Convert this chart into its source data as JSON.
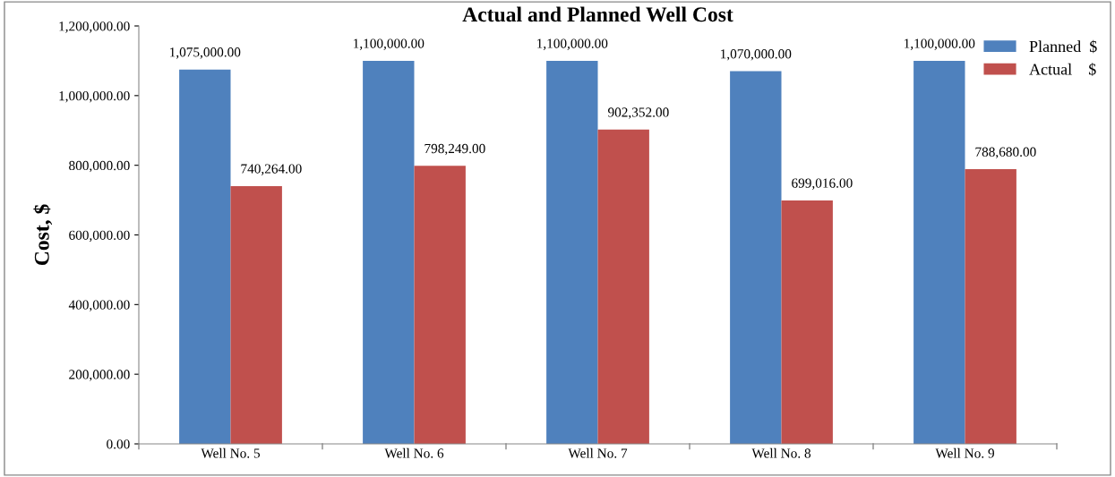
{
  "chart_data": {
    "type": "bar",
    "title": "Actual and Planned Well Cost",
    "ylabel": "Cost, $",
    "categories": [
      "Well No. 5",
      "Well No. 6",
      "Well No. 7",
      "Well No. 8",
      "Well No. 9"
    ],
    "series": [
      {
        "name": "Planned  $",
        "color": "#4f81bd",
        "values": [
          1075000,
          1100000,
          1100000,
          1070000,
          1100000
        ],
        "value_labels": [
          "1,075,000.00",
          "1,100,000.00",
          "1,100,000.00",
          "1,070,000.00",
          "1,100,000.00"
        ]
      },
      {
        "name": "Actual    $",
        "color": "#c0504d",
        "values": [
          740264,
          798249,
          902352,
          699016,
          788680
        ],
        "value_labels": [
          "740,264.00",
          "798,249.00",
          "902,352.00",
          "699,016.00",
          "788,680.00"
        ]
      }
    ],
    "ylim": [
      0,
      1200000
    ],
    "yticks": [
      {
        "value": 0,
        "label": "0.00"
      },
      {
        "value": 200000,
        "label": "200,000.00"
      },
      {
        "value": 400000,
        "label": "400,000.00"
      },
      {
        "value": 600000,
        "label": "600,000.00"
      },
      {
        "value": 800000,
        "label": "800,000.00"
      },
      {
        "value": 1000000,
        "label": "1,000,000.00"
      },
      {
        "value": 1200000,
        "label": "1,200,000.00"
      }
    ],
    "grid": false,
    "legend": "top right"
  }
}
